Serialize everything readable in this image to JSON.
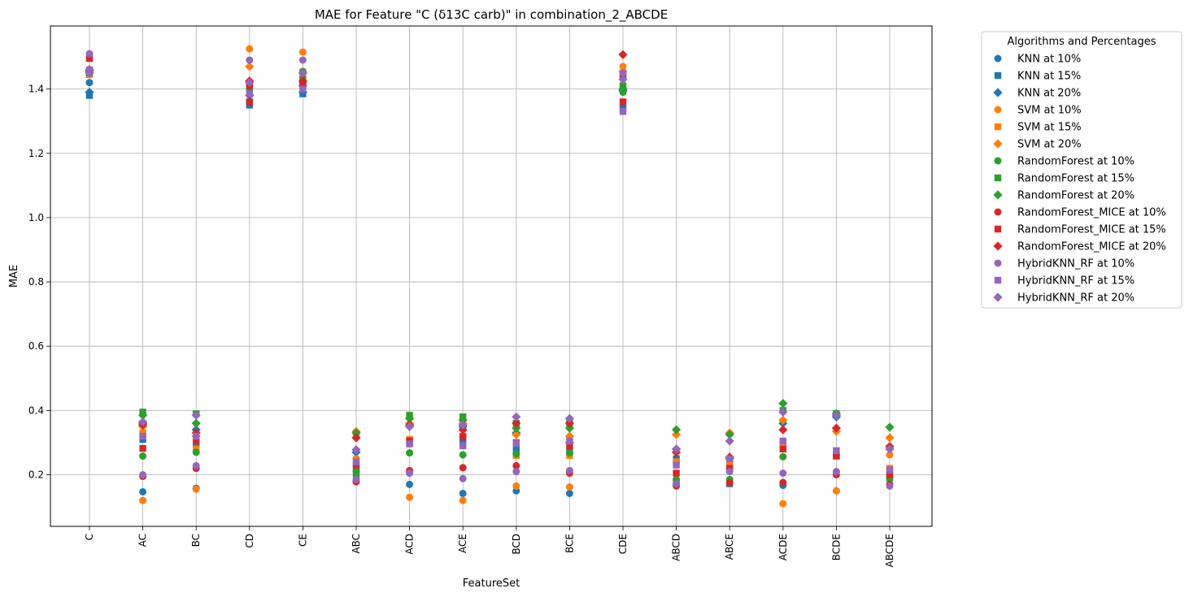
{
  "chart_data": {
    "type": "scatter",
    "title": "MAE for Feature \"C (δ13C carb)\" in combination_2_ABCDE",
    "xlabel": "FeatureSet",
    "ylabel": "MAE",
    "categories": [
      "C",
      "AC",
      "BC",
      "CD",
      "CE",
      "ABC",
      "ACD",
      "ACE",
      "BCD",
      "BCE",
      "CDE",
      "ABCD",
      "ABCE",
      "ACDE",
      "BCDE",
      "ABCDE"
    ],
    "ylim": [
      0.04,
      1.6
    ],
    "yticks": [
      0.2,
      0.4,
      0.6,
      0.8,
      1.0,
      1.2,
      1.4
    ],
    "ytick_labels": [
      "0.2",
      "0.4",
      "0.6",
      "0.8",
      "1.0",
      "1.2",
      "1.4"
    ],
    "grid": true,
    "legend_title": "Algorithms and Percentages",
    "legend_position": "outside-right",
    "series": [
      {
        "name": "KNN at 10%",
        "color": "#1f77b4",
        "marker": "circle",
        "values": [
          1.42,
          0.147,
          0.158,
          1.4,
          1.42,
          0.18,
          0.17,
          0.142,
          0.15,
          0.142,
          1.4,
          0.17,
          0.18,
          0.167,
          0.15,
          0.17
        ]
      },
      {
        "name": "KNN at 15%",
        "color": "#1f77b4",
        "marker": "square",
        "values": [
          1.38,
          0.31,
          0.3,
          1.35,
          1.385,
          0.22,
          0.3,
          0.3,
          0.28,
          0.27,
          1.34,
          0.25,
          0.172,
          0.3,
          0.26,
          0.2
        ]
      },
      {
        "name": "KNN at 20%",
        "color": "#1f77b4",
        "marker": "diamond",
        "values": [
          1.39,
          0.36,
          0.34,
          1.38,
          1.39,
          0.27,
          0.35,
          0.35,
          0.33,
          0.3,
          1.395,
          0.28,
          0.25,
          0.36,
          0.38,
          0.28
        ]
      },
      {
        "name": "SVM at 10%",
        "color": "#ff7f0e",
        "marker": "circle",
        "values": [
          1.445,
          0.12,
          0.155,
          1.525,
          1.515,
          0.25,
          0.13,
          0.12,
          0.165,
          0.162,
          1.47,
          0.24,
          0.24,
          0.11,
          0.15,
          0.262
        ]
      },
      {
        "name": "SVM at 15%",
        "color": "#ff7f0e",
        "marker": "square",
        "values": [
          1.445,
          0.33,
          0.28,
          1.41,
          1.44,
          0.32,
          0.31,
          0.32,
          0.26,
          0.26,
          1.44,
          0.24,
          0.24,
          0.3,
          0.26,
          0.22
        ]
      },
      {
        "name": "SVM at 20%",
        "color": "#ff7f0e",
        "marker": "diamond",
        "values": [
          1.45,
          0.35,
          0.32,
          1.47,
          1.45,
          0.335,
          0.36,
          0.36,
          0.325,
          0.32,
          1.455,
          0.325,
          0.33,
          0.37,
          0.335,
          0.315
        ]
      },
      {
        "name": "RandomForest at 10%",
        "color": "#2ca02c",
        "marker": "circle",
        "values": [
          1.46,
          0.258,
          0.27,
          1.42,
          1.455,
          0.21,
          0.268,
          0.262,
          0.265,
          0.268,
          1.39,
          0.185,
          0.185,
          0.256,
          0.26,
          0.19
        ]
      },
      {
        "name": "RandomForest at 15%",
        "color": "#2ca02c",
        "marker": "square",
        "values": [
          1.45,
          0.395,
          0.39,
          1.4,
          1.43,
          0.2,
          0.385,
          0.38,
          0.36,
          0.36,
          1.41,
          0.18,
          0.18,
          0.4,
          0.39,
          0.19
        ]
      },
      {
        "name": "RandomForest at 20%",
        "color": "#2ca02c",
        "marker": "diamond",
        "values": [
          1.455,
          0.385,
          0.36,
          1.42,
          1.41,
          0.33,
          0.375,
          0.37,
          0.345,
          0.345,
          1.4,
          0.34,
          0.325,
          0.422,
          0.39,
          0.348
        ]
      },
      {
        "name": "RandomForest_MICE at 10%",
        "color": "#d62728",
        "marker": "circle",
        "values": [
          1.46,
          0.195,
          0.22,
          1.41,
          1.42,
          0.178,
          0.213,
          0.222,
          0.228,
          0.205,
          1.44,
          0.165,
          0.175,
          0.176,
          0.2,
          0.17
        ]
      },
      {
        "name": "RandomForest_MICE at 15%",
        "color": "#d62728",
        "marker": "square",
        "values": [
          1.495,
          0.282,
          0.305,
          1.36,
          1.41,
          0.23,
          0.305,
          0.318,
          0.3,
          0.29,
          1.36,
          0.205,
          0.22,
          0.28,
          0.258,
          0.2
        ]
      },
      {
        "name": "RandomForest_MICE at 20%",
        "color": "#d62728",
        "marker": "diamond",
        "values": [
          1.46,
          0.355,
          0.33,
          1.425,
          1.425,
          0.315,
          0.355,
          0.34,
          0.36,
          0.36,
          1.507,
          0.27,
          0.255,
          0.34,
          0.345,
          0.288
        ]
      },
      {
        "name": "HybridKNN_RF at 10%",
        "color": "#9467bd",
        "marker": "circle",
        "values": [
          1.51,
          0.2,
          0.228,
          1.49,
          1.49,
          0.185,
          0.205,
          0.188,
          0.21,
          0.213,
          1.45,
          0.172,
          0.21,
          0.205,
          0.21,
          0.165
        ]
      },
      {
        "name": "HybridKNN_RF at 15%",
        "color": "#9467bd",
        "marker": "square",
        "values": [
          1.46,
          0.32,
          0.32,
          1.385,
          1.4,
          0.24,
          0.296,
          0.29,
          0.298,
          0.305,
          1.33,
          0.23,
          0.25,
          0.305,
          0.275,
          0.215
        ]
      },
      {
        "name": "HybridKNN_RF at 20%",
        "color": "#9467bd",
        "marker": "diamond",
        "values": [
          1.45,
          0.365,
          0.385,
          1.42,
          1.45,
          0.278,
          0.35,
          0.355,
          0.38,
          0.375,
          1.43,
          0.28,
          0.305,
          0.395,
          0.385,
          0.28
        ]
      }
    ]
  }
}
